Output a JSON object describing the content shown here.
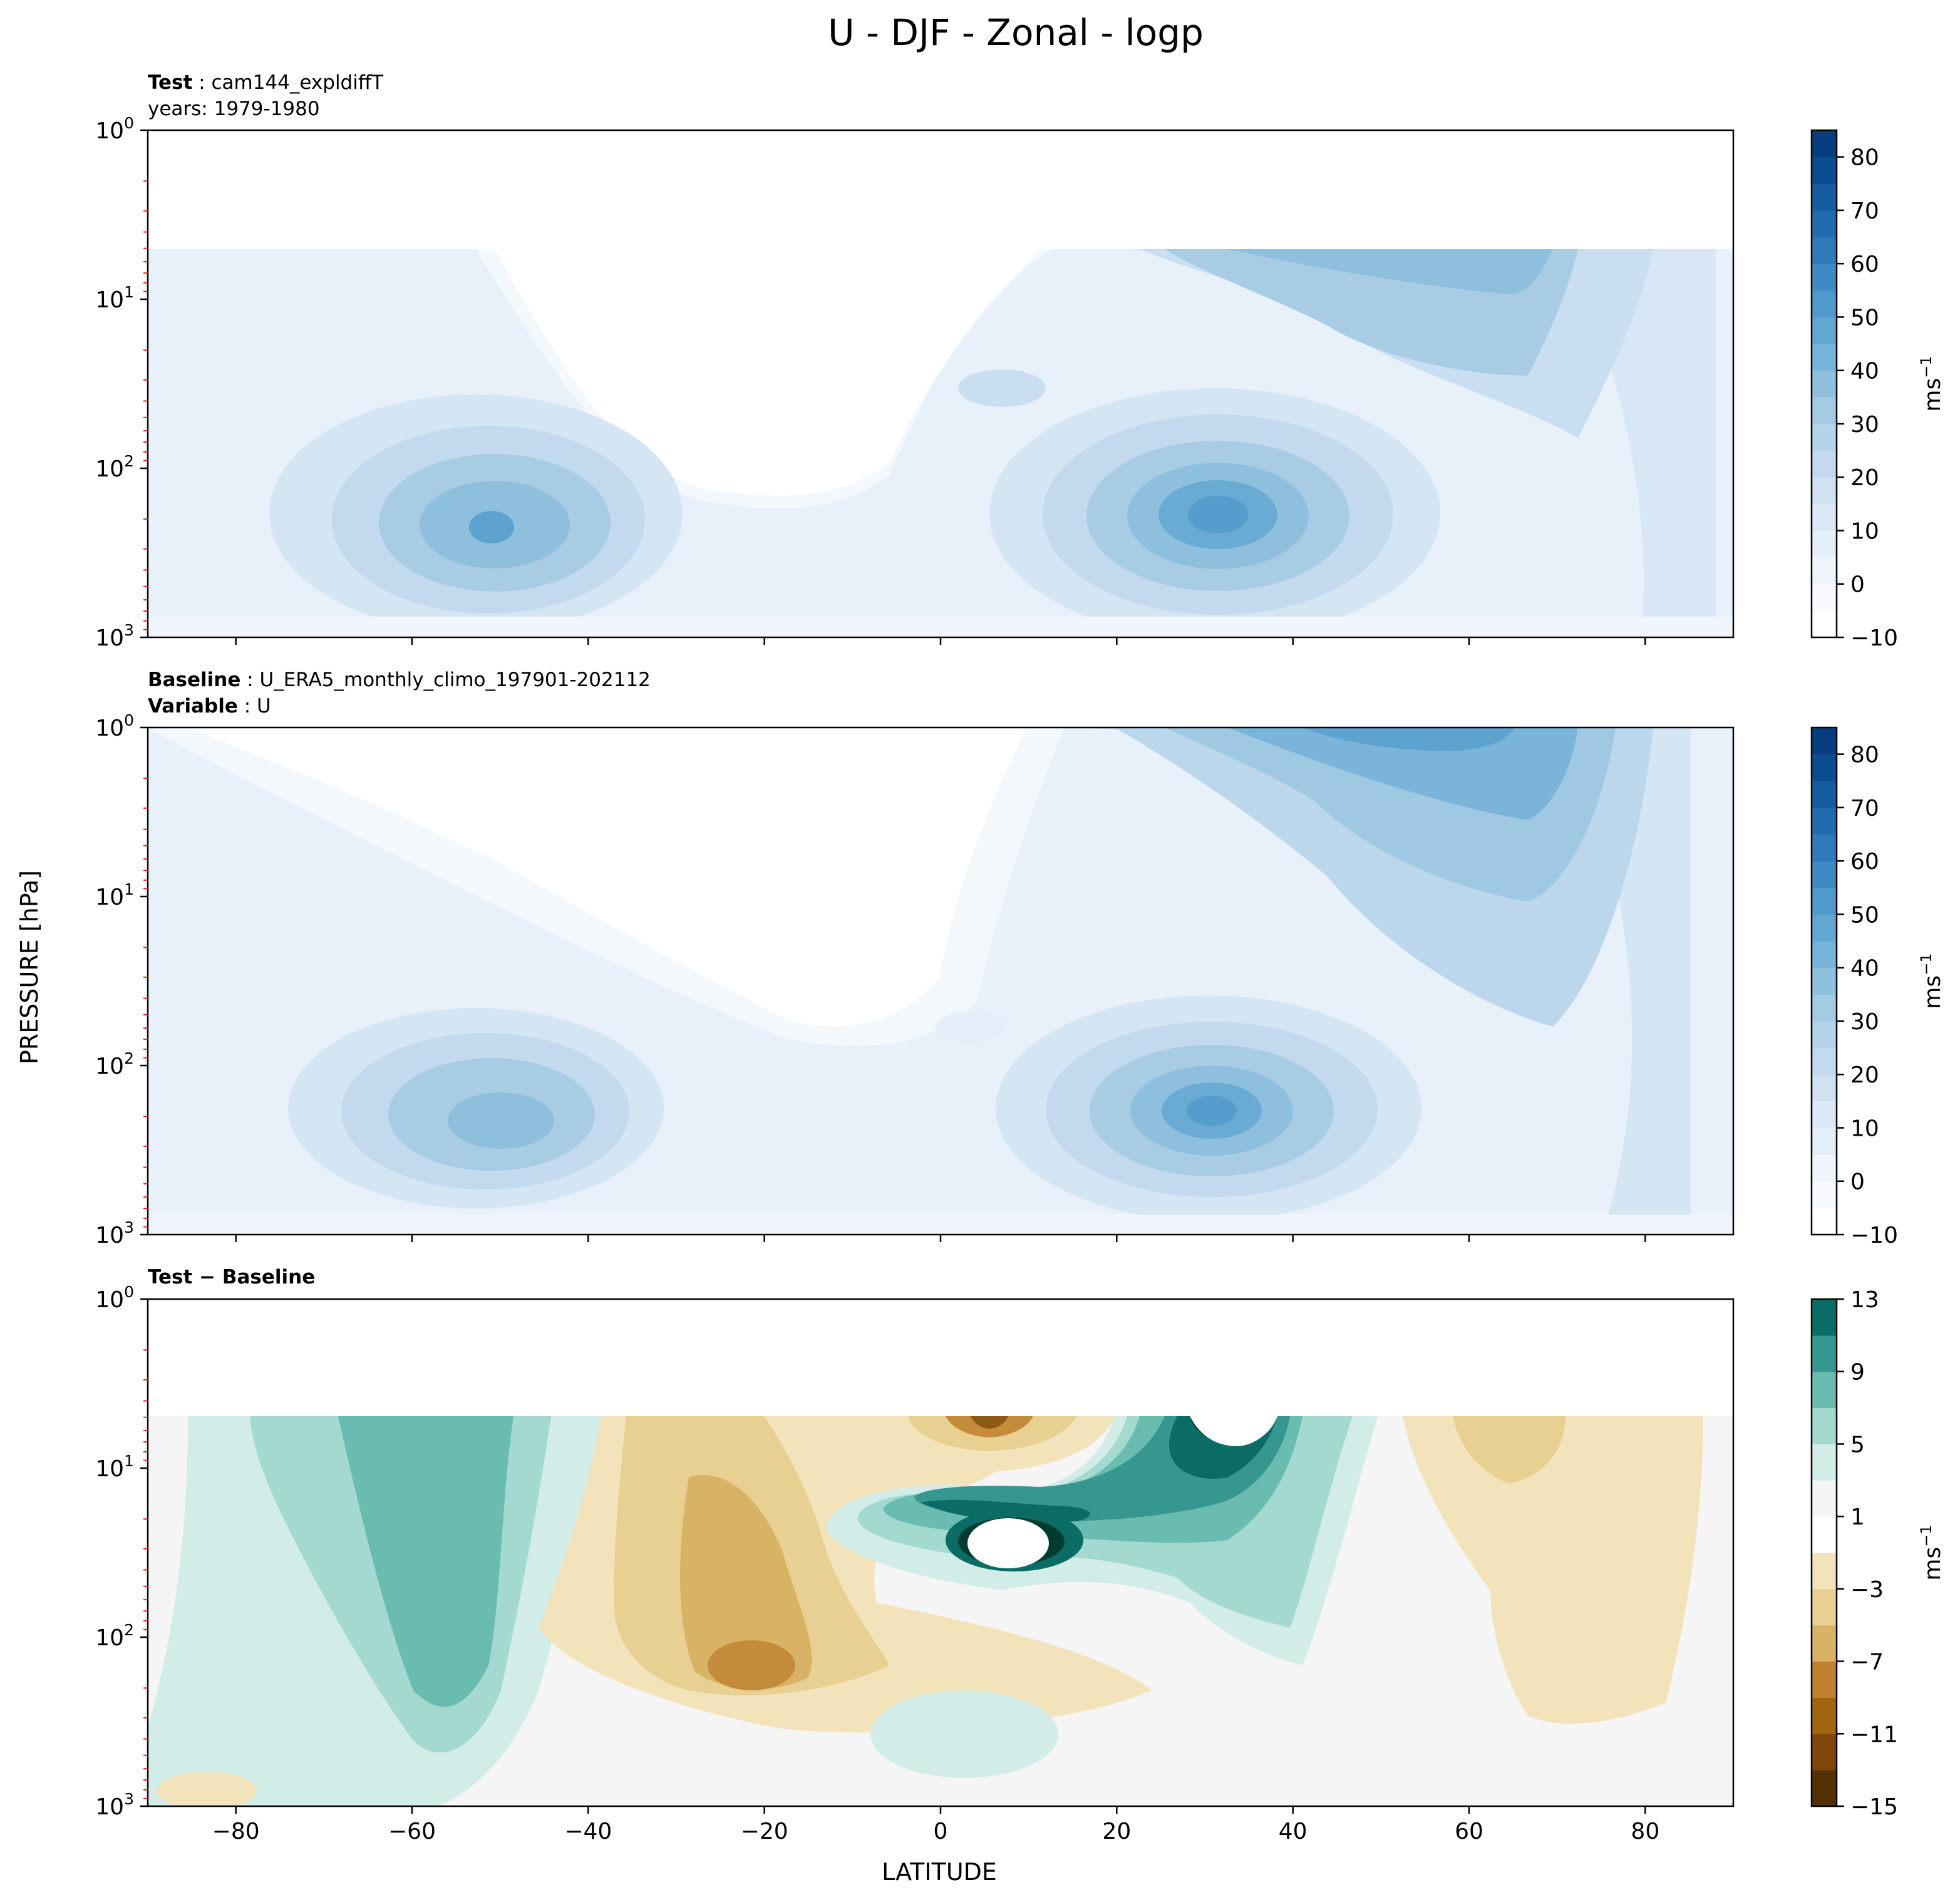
{
  "chart_data": {
    "title": "U - DJF - Zonal - logp",
    "type": "heatmap",
    "xlabel": "LATITUDE",
    "ylabel": "PRESSURE [hPa]",
    "xlim": [
      -90,
      90
    ],
    "x_ticks": [
      -80,
      -60,
      -40,
      -20,
      0,
      20,
      40,
      60,
      80
    ],
    "x_tick_labels": [
      "−80",
      "−60",
      "−40",
      "−20",
      "0",
      "20",
      "40",
      "60",
      "80"
    ],
    "y_scale": "log",
    "ylim_hPa": [
      1000,
      1
    ],
    "y_tick_labels": [
      {
        "value": 1,
        "base": "10",
        "exp": "0"
      },
      {
        "value": 10,
        "base": "10",
        "exp": "1"
      },
      {
        "value": 100,
        "base": "10",
        "exp": "2"
      },
      {
        "value": 1000,
        "base": "10",
        "exp": "3"
      }
    ],
    "minor_tick_color": "#d62728",
    "panels": [
      {
        "id": "test",
        "header_bold": "Test",
        "header_sep": " : ",
        "header_text": "cam144_expldiffT",
        "line2_bold": "",
        "line2_sep": "",
        "line2_text": "years: 1979-1980",
        "field": "U",
        "colormap": "Blues",
        "top_of_data_hPa": 5,
        "features": [
          {
            "kind": "jet",
            "lat": -50,
            "p_hPa": 220,
            "max": 42
          },
          {
            "kind": "jet",
            "lat": 32,
            "p_hPa": 200,
            "max": 42
          },
          {
            "kind": "min",
            "lat": -20,
            "p_hPa": 20,
            "min": -10
          }
        ],
        "colorbar": {
          "label_base": "ms",
          "label_exp": "−1",
          "vmin": -10,
          "vmax": 85,
          "ticks": [
            -10,
            0,
            10,
            20,
            30,
            40,
            50,
            60,
            70,
            80
          ],
          "tick_labels": [
            "−10",
            "0",
            "10",
            "20",
            "30",
            "40",
            "50",
            "60",
            "70",
            "80"
          ],
          "levels": [
            -10,
            -5,
            0,
            5,
            10,
            15,
            20,
            25,
            30,
            35,
            40,
            45,
            50,
            55,
            60,
            65,
            70,
            75,
            80,
            85
          ],
          "colors": [
            "#ffffff",
            "#f7fbff",
            "#eff5fc",
            "#e5eff9",
            "#dbe8f6",
            "#d0e1f2",
            "#c3d9ee",
            "#b5d3e9",
            "#a3cbe4",
            "#8fc1de",
            "#78b4d9",
            "#61a7d2",
            "#4f9acc",
            "#3d8bc3",
            "#2d7bb9",
            "#1f6bae",
            "#155ca2",
            "#0c4d92",
            "#083d7f"
          ]
        }
      },
      {
        "id": "baseline",
        "header_bold": "Baseline",
        "header_sep": " : ",
        "header_text": "U_ERA5_monthly_climo_197901-202112",
        "line2_bold": "Variable",
        "line2_sep": " : ",
        "line2_text": "U",
        "field": "U",
        "colormap": "Blues",
        "top_of_data_hPa": 1,
        "features": [
          {
            "kind": "jet",
            "lat": -48,
            "p_hPa": 230,
            "max": 35
          },
          {
            "kind": "jet",
            "lat": 30,
            "p_hPa": 200,
            "max": 42
          },
          {
            "kind": "jet",
            "lat": 50,
            "p_hPa": 1.2,
            "max": 42
          },
          {
            "kind": "min",
            "lat": -20,
            "p_hPa": 10,
            "min": -10
          }
        ],
        "colorbar": {
          "label_base": "ms",
          "label_exp": "−1",
          "vmin": -10,
          "vmax": 85,
          "ticks": [
            -10,
            0,
            10,
            20,
            30,
            40,
            50,
            60,
            70,
            80
          ],
          "tick_labels": [
            "−10",
            "0",
            "10",
            "20",
            "30",
            "40",
            "50",
            "60",
            "70",
            "80"
          ],
          "levels": [
            -10,
            -5,
            0,
            5,
            10,
            15,
            20,
            25,
            30,
            35,
            40,
            45,
            50,
            55,
            60,
            65,
            70,
            75,
            80,
            85
          ],
          "colors": [
            "#ffffff",
            "#f7fbff",
            "#eff5fc",
            "#e5eff9",
            "#dbe8f6",
            "#d0e1f2",
            "#c3d9ee",
            "#b5d3e9",
            "#a3cbe4",
            "#8fc1de",
            "#78b4d9",
            "#61a7d2",
            "#4f9acc",
            "#3d8bc3",
            "#2d7bb9",
            "#1f6bae",
            "#155ca2",
            "#0c4d92",
            "#083d7f"
          ]
        }
      },
      {
        "id": "diff",
        "header_bold": "Test − Baseline",
        "header_sep": "",
        "header_text": "",
        "line2_bold": "",
        "line2_sep": "",
        "line2_text": "",
        "field": "U difference",
        "colormap": "BrBG",
        "top_of_data_hPa": 5,
        "features": [
          {
            "kind": "positive",
            "lat": 8,
            "p_hPa": 30,
            "max": 13
          },
          {
            "kind": "positive",
            "lat": 33,
            "p_hPa": 6,
            "max": 13
          },
          {
            "kind": "positive",
            "lat": -55,
            "p_hPa": 150,
            "max": 7
          },
          {
            "kind": "negative",
            "lat": -22,
            "p_hPa": 150,
            "min": -7
          },
          {
            "kind": "negative",
            "lat": 5,
            "p_hPa": 6,
            "min": -11
          },
          {
            "kind": "negative",
            "lat": 65,
            "p_hPa": 10,
            "min": -5
          }
        ],
        "colorbar": {
          "label_base": "ms",
          "label_exp": "−1",
          "vmin": -15,
          "vmax": 13,
          "ticks": [
            -15,
            -11,
            -7,
            -3,
            1,
            5,
            9,
            13
          ],
          "tick_labels": [
            "−15",
            "−11",
            "−7",
            "−3",
            "1",
            "5",
            "9",
            "13"
          ],
          "levels": [
            -15,
            -13,
            -11,
            -9,
            -7,
            -5,
            -3,
            -1,
            1,
            3,
            5,
            7,
            9,
            11,
            13
          ],
          "colors": [
            "#543005",
            "#7f4709",
            "#a0650f",
            "#bf812d",
            "#d8b365",
            "#e8cf92",
            "#f3e3bb",
            "#ffffff",
            "#f4f5f4",
            "#d2ece7",
            "#a3d9cf",
            "#6abcb0",
            "#35978f",
            "#0b6c65",
            "#003c30"
          ]
        }
      }
    ]
  }
}
